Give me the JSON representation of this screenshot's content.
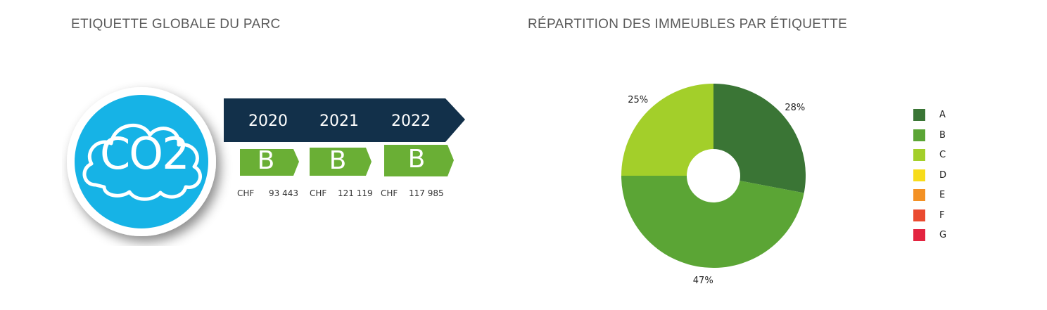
{
  "left_title": "ETIQUETTE GLOBALE DU PARC",
  "right_title": "RÉPARTITION DES IMMEUBLES PAR ÉTIQUETTE",
  "co2_label": "CO2",
  "years": [
    {
      "year": "2020",
      "label": "B",
      "currency": "CHF",
      "amount": "93 443"
    },
    {
      "year": "2021",
      "label": "B",
      "currency": "CHF",
      "amount": "121 119"
    },
    {
      "year": "2022",
      "label": "B",
      "currency": "CHF",
      "amount": "117 985"
    }
  ],
  "colors": {
    "ribbon": "#12304a",
    "badge": "#6aaf35",
    "cloud_circle": "#16b3e6",
    "A": "#3a7535",
    "B": "#5ba535",
    "C": "#a3cf2a",
    "D": "#f7dc1b",
    "E": "#f39124",
    "F": "#ea4a30",
    "G": "#e32440"
  },
  "chart_data": {
    "type": "pie",
    "donut": true,
    "title": "RÉPARTITION DES IMMEUBLES PAR ÉTIQUETTE",
    "slices": [
      {
        "label": "A",
        "value": 28,
        "display": "28%"
      },
      {
        "label": "B",
        "value": 47,
        "display": "47%"
      },
      {
        "label": "C",
        "value": 25,
        "display": "25%"
      }
    ],
    "legend": [
      "A",
      "B",
      "C",
      "D",
      "E",
      "F",
      "G"
    ],
    "legend_position": "right"
  }
}
